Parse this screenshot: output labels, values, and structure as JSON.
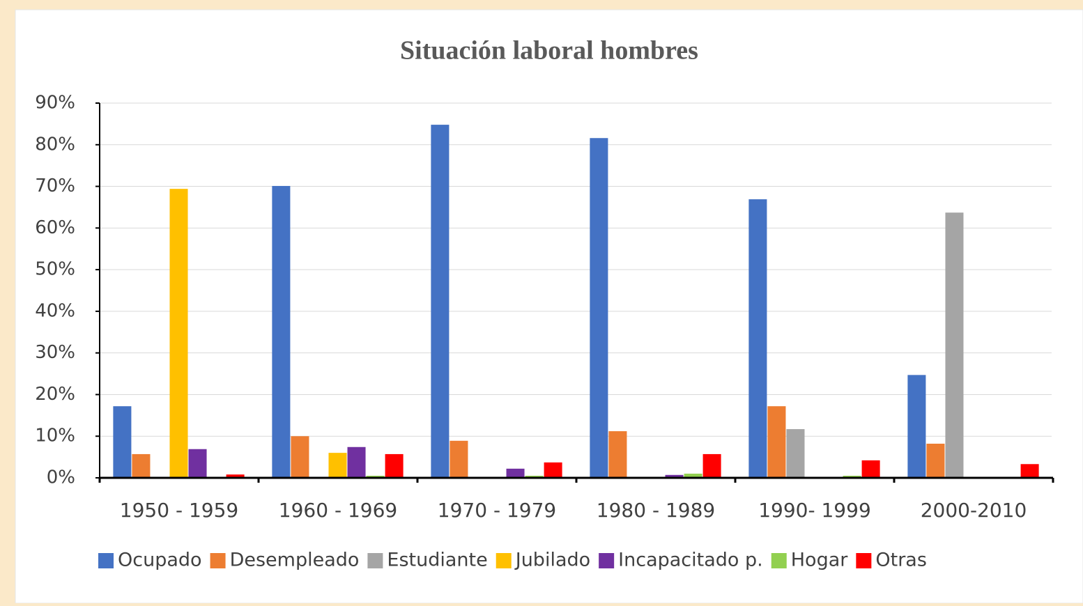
{
  "chart_data": {
    "type": "bar",
    "title": "Situación laboral hombres",
    "categories": [
      "1950 - 1959",
      "1960 - 1969",
      "1970 - 1979",
      "1980 - 1989",
      "1990- 1999",
      "2000-2010"
    ],
    "series": [
      {
        "name": "Ocupado",
        "color": "#4472c4",
        "values": [
          17.2,
          70.1,
          84.8,
          81.6,
          66.9,
          24.7
        ]
      },
      {
        "name": "Desempleado",
        "color": "#ed7d31",
        "values": [
          5.7,
          10.0,
          8.9,
          11.2,
          17.2,
          8.2
        ]
      },
      {
        "name": "Estudiante",
        "color": "#a5a5a5",
        "values": [
          0,
          0,
          0,
          0,
          11.7,
          63.7
        ]
      },
      {
        "name": "Jubilado",
        "color": "#ffc000",
        "values": [
          69.4,
          6.0,
          0,
          0,
          0,
          0
        ]
      },
      {
        "name": "Incapacitado p.",
        "color": "#7030a0",
        "values": [
          6.9,
          7.4,
          2.2,
          0.7,
          0,
          0
        ]
      },
      {
        "name": "Hogar",
        "color": "#92d050",
        "values": [
          0,
          0.5,
          0.5,
          1.0,
          0.5,
          0
        ]
      },
      {
        "name": "Otras",
        "color": "#ff0000",
        "values": [
          0.8,
          5.7,
          3.7,
          5.7,
          4.2,
          3.3
        ]
      }
    ],
    "ylim": [
      0,
      90
    ],
    "yticks": [
      {
        "value": 0,
        "label": "0%"
      },
      {
        "value": 10,
        "label": "10%"
      },
      {
        "value": 20,
        "label": "20%"
      },
      {
        "value": 30,
        "label": "30%"
      },
      {
        "value": 40,
        "label": "40%"
      },
      {
        "value": 50,
        "label": "50%"
      },
      {
        "value": 60,
        "label": "60%"
      },
      {
        "value": 70,
        "label": "70%"
      },
      {
        "value": 80,
        "label": "80%"
      },
      {
        "value": 90,
        "label": "90%"
      }
    ],
    "grid": true,
    "legend": "bottom"
  }
}
